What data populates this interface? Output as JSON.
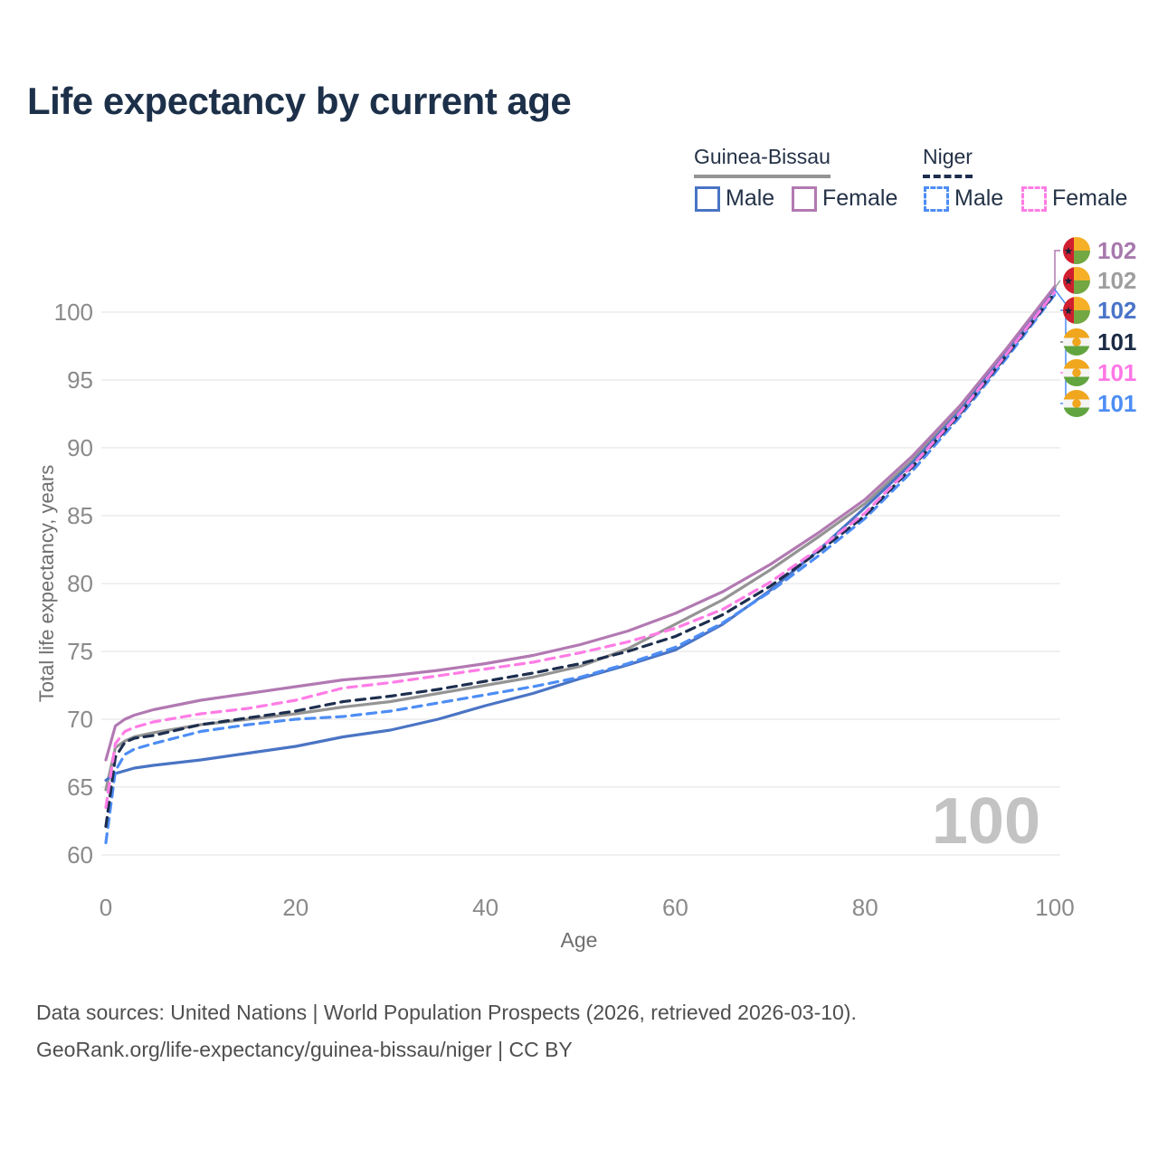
{
  "title": "Life expectancy by current age",
  "legend": {
    "groups": [
      {
        "label": "Guinea-Bissau",
        "underline_color": "#949494",
        "underline_style": "solid"
      },
      {
        "label": "Niger",
        "underline_color": "#1d2e4e",
        "underline_style": "dashed"
      }
    ],
    "items": [
      {
        "label": "Male",
        "color": "#4a74c4",
        "dash": false,
        "group": "Guinea-Bissau"
      },
      {
        "label": "Female",
        "color": "#b279b2",
        "dash": false,
        "group": "Guinea-Bissau"
      },
      {
        "label": "Male",
        "color": "#4d8df5",
        "dash": true,
        "group": "Niger"
      },
      {
        "label": "Female",
        "color": "#ff7ce5",
        "dash": true,
        "group": "Niger"
      }
    ]
  },
  "watermark": "100",
  "footer": {
    "line1": "Data sources: United Nations | World Population Prospects (2026, retrieved 2026-03-10).",
    "line2": "GeoRank.org/life-expectancy/guinea-bissau/niger | CC BY"
  },
  "chart_data": {
    "type": "line",
    "title": "Life expectancy by current age",
    "xlabel": "Age",
    "ylabel": "Total life expectancy, years",
    "xlim": [
      0,
      100
    ],
    "ylim": [
      60,
      100
    ],
    "xticks": [
      0,
      20,
      40,
      60,
      80,
      100
    ],
    "yticks": [
      60,
      65,
      70,
      75,
      80,
      85,
      90,
      95,
      100
    ],
    "grid": "horizontal",
    "legend_position": "top-right",
    "x": [
      0,
      1,
      2,
      3,
      5,
      10,
      15,
      20,
      25,
      30,
      35,
      40,
      45,
      50,
      55,
      60,
      65,
      70,
      75,
      80,
      85,
      90,
      95,
      100
    ],
    "series": [
      {
        "name": "Guinea-Bissau Both sexes",
        "color": "#949494",
        "dash": false,
        "values": [
          64.8,
          67.9,
          68.4,
          68.7,
          69.0,
          69.6,
          70.0,
          70.4,
          70.9,
          71.3,
          71.9,
          72.5,
          73.1,
          73.9,
          75.2,
          77.0,
          78.8,
          81.0,
          83.4,
          85.9,
          89.1,
          92.9,
          97.2,
          101.8
        ]
      },
      {
        "name": "Guinea-Bissau Male",
        "color": "#4a74c4",
        "dash": false,
        "values": [
          65.5,
          66.0,
          66.2,
          66.4,
          66.6,
          67.0,
          67.5,
          68.0,
          68.7,
          69.2,
          70.0,
          71.0,
          71.9,
          73.0,
          74.0,
          75.1,
          77.0,
          79.5,
          82.4,
          85.6,
          88.9,
          92.7,
          97.1,
          101.8
        ]
      },
      {
        "name": "Guinea-Bissau Female",
        "color": "#b279b2",
        "dash": false,
        "values": [
          67.0,
          69.5,
          70.0,
          70.3,
          70.7,
          71.4,
          71.9,
          72.4,
          72.9,
          73.2,
          73.6,
          74.1,
          74.7,
          75.5,
          76.5,
          77.8,
          79.4,
          81.4,
          83.7,
          86.2,
          89.4,
          93.1,
          97.4,
          101.9
        ]
      },
      {
        "name": "Niger Male",
        "color": "#4d8df5",
        "dash": true,
        "values": [
          60.9,
          66.2,
          67.4,
          67.8,
          68.2,
          69.1,
          69.6,
          70.0,
          70.2,
          70.6,
          71.2,
          71.8,
          72.4,
          73.1,
          74.1,
          75.3,
          77.1,
          79.4,
          82.0,
          84.8,
          88.3,
          92.3,
          96.7,
          101.3
        ]
      },
      {
        "name": "Niger Both sexes",
        "color": "#1d2e4e",
        "dash": true,
        "values": [
          62.1,
          67.2,
          68.3,
          68.6,
          68.8,
          69.6,
          70.1,
          70.6,
          71.3,
          71.7,
          72.2,
          72.8,
          73.4,
          74.1,
          75.0,
          76.1,
          77.7,
          79.8,
          82.3,
          85.0,
          88.6,
          92.5,
          96.9,
          101.4
        ]
      },
      {
        "name": "Niger Female",
        "color": "#ff7ce5",
        "dash": true,
        "values": [
          63.5,
          68.2,
          69.1,
          69.4,
          69.8,
          70.4,
          70.8,
          71.4,
          72.3,
          72.7,
          73.2,
          73.7,
          74.2,
          74.9,
          75.7,
          76.7,
          78.1,
          80.1,
          82.5,
          85.2,
          88.7,
          92.6,
          97.0,
          101.5
        ]
      }
    ],
    "end_labels": [
      {
        "value": "102",
        "color": "#a879ad",
        "flag": "guinea-bissau",
        "series": "Guinea-Bissau Female"
      },
      {
        "value": "102",
        "color": "#9e9e9e",
        "flag": "guinea-bissau",
        "series": "Guinea-Bissau Both sexes"
      },
      {
        "value": "102",
        "color": "#4a74c9",
        "flag": "guinea-bissau",
        "series": "Guinea-Bissau Male"
      },
      {
        "value": "101",
        "color": "#1b2b45",
        "flag": "niger",
        "series": "Niger Both sexes"
      },
      {
        "value": "101",
        "color": "#ff77e5",
        "flag": "niger",
        "series": "Niger Female"
      },
      {
        "value": "101",
        "color": "#4d8df5",
        "flag": "niger",
        "series": "Niger Male"
      }
    ],
    "flag_colors": {
      "guinea_bissau_red": "#d01f2f",
      "guinea_bissau_yellow": "#f5b027",
      "guinea_bissau_green": "#72a741",
      "guinea_bissau_star": "#12233d",
      "niger_orange": "#f0a61d",
      "niger_white": "#f4f4f4",
      "niger_green": "#62a43f"
    }
  }
}
